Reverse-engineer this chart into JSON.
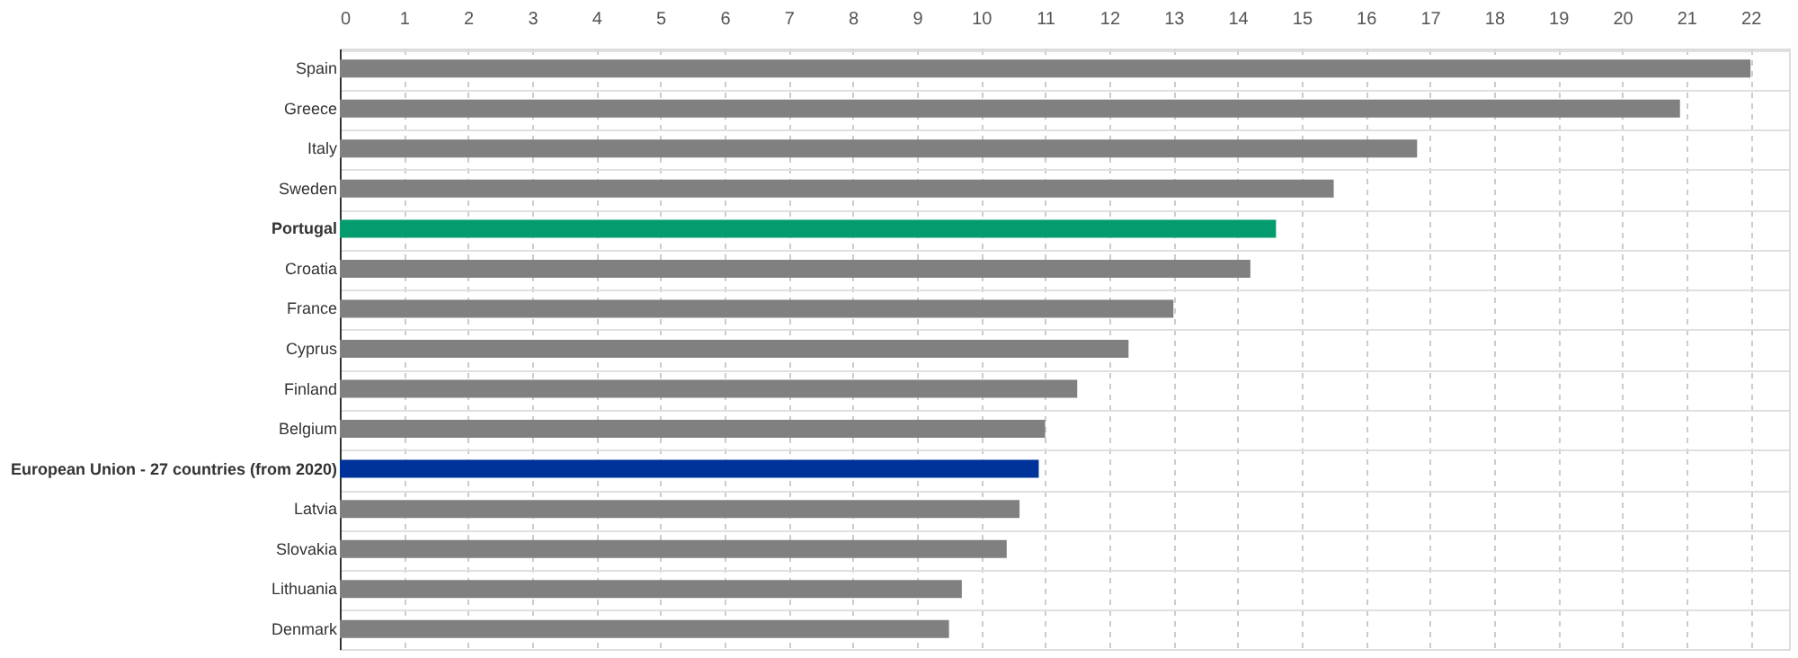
{
  "chart_data": {
    "type": "bar",
    "orientation": "horizontal",
    "categories": [
      "Spain",
      "Greece",
      "Italy",
      "Sweden",
      "Portugal",
      "Croatia",
      "France",
      "Cyprus",
      "Finland",
      "Belgium",
      "European Union - 27 countries (from 2020)",
      "Latvia",
      "Slovakia",
      "Lithuania",
      "Denmark"
    ],
    "values": [
      22.0,
      20.9,
      16.8,
      15.5,
      14.6,
      14.2,
      13.0,
      12.3,
      11.5,
      11.0,
      10.9,
      10.6,
      10.4,
      9.7,
      9.5
    ],
    "colors": [
      "#808080",
      "#808080",
      "#808080",
      "#808080",
      "#049b6f",
      "#808080",
      "#808080",
      "#808080",
      "#808080",
      "#808080",
      "#003399",
      "#808080",
      "#808080",
      "#808080",
      "#808080"
    ],
    "xlim": [
      0,
      22.6
    ],
    "xticks": [
      0,
      1,
      2,
      3,
      4,
      5,
      6,
      7,
      8,
      9,
      10,
      11,
      12,
      13,
      14,
      15,
      16,
      17,
      18,
      19,
      20,
      21,
      22
    ],
    "grid": true
  }
}
